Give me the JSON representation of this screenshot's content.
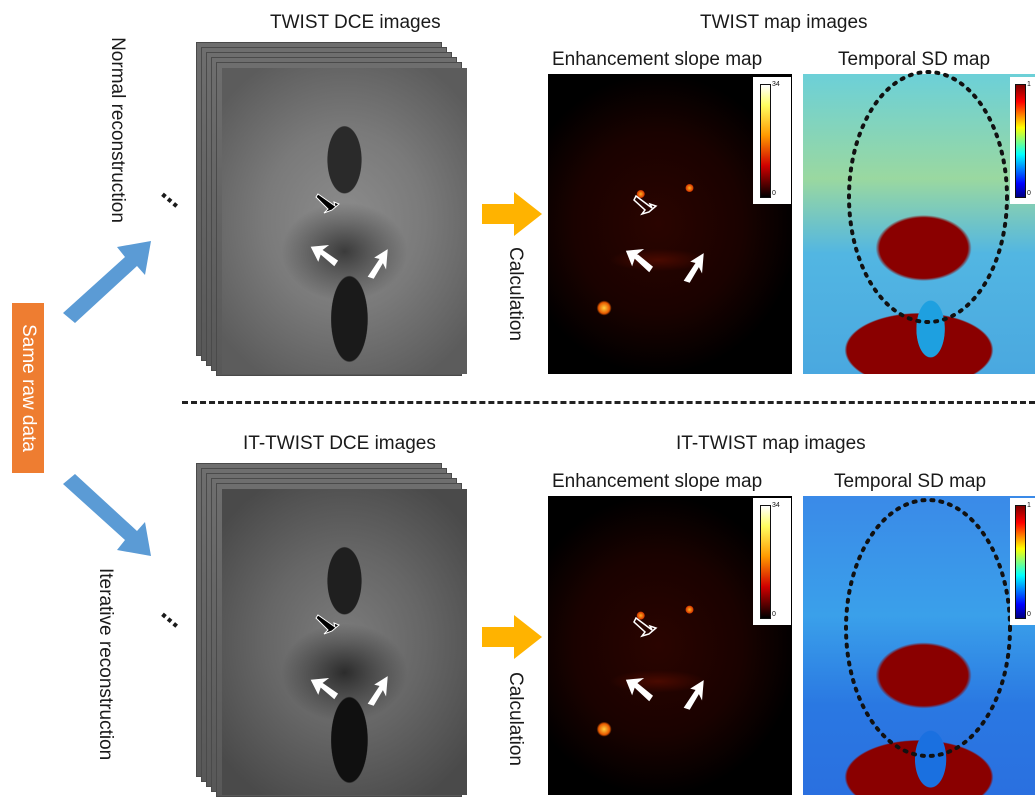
{
  "source_label": "Same raw data",
  "continuation_dots": "⋯",
  "top_row": {
    "reconstruction_label": "Normal reconstruction",
    "dce_title": "TWIST DCE images",
    "map_group_title": "TWIST map images",
    "calculation_label": "Calculation",
    "slope_map_title": "Enhancement slope map",
    "slope_colorbar_max": "34",
    "slope_colorbar_min": "0",
    "sd_map_title": "Temporal SD map",
    "sd_colorbar_max": "1",
    "sd_colorbar_min": "0"
  },
  "bottom_row": {
    "reconstruction_label": "Iterative reconstruction",
    "dce_title": "IT-TWIST DCE images",
    "map_group_title": "IT-TWIST map images",
    "calculation_label": "Calculation",
    "slope_map_title": "Enhancement slope map",
    "slope_colorbar_max": "34",
    "slope_colorbar_min": "0",
    "sd_map_title": "Temporal SD map",
    "sd_colorbar_max": "1",
    "sd_colorbar_min": "0"
  },
  "colors": {
    "source_box": "#ee7d31",
    "blue_arrow": "#5b9bd5",
    "orange_arrow": "#ffb300",
    "dashed_divider": "#222222"
  }
}
